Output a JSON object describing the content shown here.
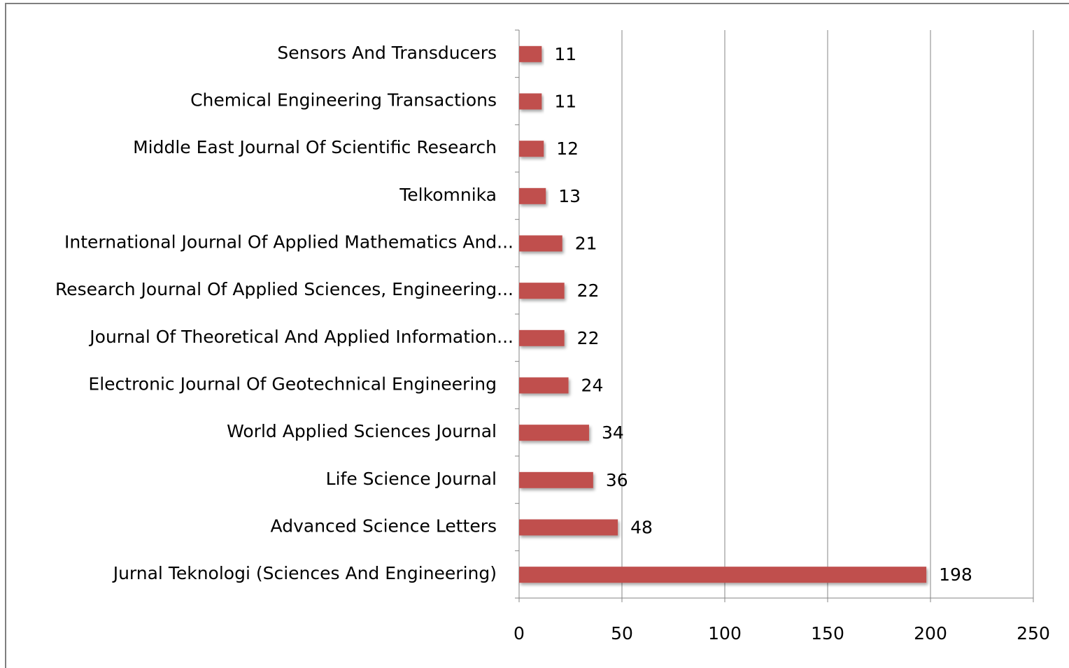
{
  "chart_data": {
    "type": "barh",
    "categories": [
      "Sensors And Transducers",
      "Chemical Engineering Transactions",
      "Middle East Journal Of Scientific Research",
      "Telkomnika",
      "International Journal Of Applied Mathematics And...",
      "Research Journal Of Applied Sciences, Engineering...",
      "Journal Of Theoretical And Applied Information...",
      "Electronic Journal Of Geotechnical Engineering",
      "World Applied Sciences Journal",
      "Life Science Journal",
      "Advanced Science Letters",
      "Jurnal Teknologi (Sciences And Engineering)"
    ],
    "values": [
      11,
      11,
      12,
      13,
      21,
      22,
      22,
      24,
      34,
      36,
      48,
      198
    ],
    "color": "#c0504d",
    "xlim": [
      0,
      250
    ],
    "xticks": [
      0,
      50,
      100,
      150,
      200,
      250
    ],
    "grid": true
  }
}
